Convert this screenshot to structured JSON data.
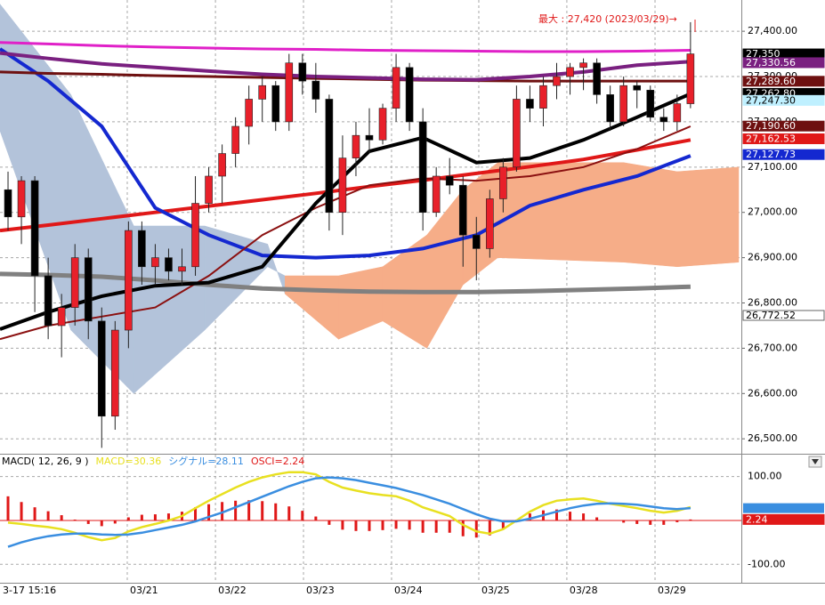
{
  "chart_data": [
    {
      "type": "candlestick",
      "annotation": "最大 : 27,420 (2023/03/29)→",
      "up_color": "#e8202a",
      "down_color": "#000000",
      "ylim": [
        26467,
        27469
      ],
      "yticks": [
        {
          "value": 26500,
          "label": "26,500.00"
        },
        {
          "value": 26600,
          "label": "26,600.00"
        },
        {
          "value": 26700,
          "label": "26,700.00"
        },
        {
          "value": 26800,
          "label": "26,800.00"
        },
        {
          "value": 26900,
          "label": "26,900.00"
        },
        {
          "value": 27000,
          "label": "27,000.00"
        },
        {
          "value": 27100,
          "label": "27,100.00"
        },
        {
          "value": 27200,
          "label": "27,200.00"
        },
        {
          "value": 27300,
          "label": "27,300.00"
        },
        {
          "value": 27400,
          "label": "27,400.00"
        }
      ],
      "grid": true,
      "open": [
        27050,
        26990,
        27070,
        26860,
        26750,
        26790,
        26900,
        26760,
        26550,
        26740,
        26960,
        26880,
        26900,
        26870,
        26880,
        27020,
        27080,
        27130,
        27190,
        27250,
        27280,
        27200,
        27330,
        27290,
        27250,
        27000,
        27120,
        27170,
        27160,
        27230,
        27320,
        27200,
        27000,
        27080,
        27060,
        26950,
        26920,
        27030,
        27100,
        27250,
        27230,
        27280,
        27300,
        27320,
        27330,
        27260,
        27200,
        27280,
        27270,
        27210,
        27200,
        27240
      ],
      "high": [
        27090,
        27080,
        27080,
        26900,
        26820,
        26930,
        26920,
        26790,
        26760,
        26980,
        26980,
        26930,
        26920,
        26920,
        27080,
        27100,
        27150,
        27210,
        27280,
        27300,
        27290,
        27350,
        27350,
        27330,
        27260,
        27170,
        27200,
        27230,
        27240,
        27350,
        27330,
        27230,
        27100,
        27120,
        27080,
        26990,
        27050,
        27120,
        27280,
        27280,
        27300,
        27330,
        27330,
        27340,
        27340,
        27280,
        27300,
        27290,
        27280,
        27230,
        27260,
        27420
      ],
      "low": [
        26960,
        26930,
        26780,
        26720,
        26680,
        26750,
        26720,
        26480,
        26520,
        26700,
        26840,
        26840,
        26850,
        26840,
        26860,
        27000,
        27020,
        27100,
        27150,
        27200,
        27180,
        27180,
        27260,
        27220,
        26960,
        26950,
        27080,
        27130,
        27150,
        27200,
        27180,
        26960,
        26990,
        27040,
        26880,
        26850,
        26900,
        27000,
        27090,
        27200,
        27190,
        27250,
        27260,
        27270,
        27240,
        27180,
        27190,
        27230,
        27200,
        27180,
        27180,
        27230
      ],
      "close": [
        26990,
        27070,
        26860,
        26750,
        26790,
        26900,
        26760,
        26550,
        26740,
        26960,
        26880,
        26900,
        26870,
        26880,
        27020,
        27080,
        27130,
        27190,
        27250,
        27280,
        27200,
        27330,
        27290,
        27250,
        27000,
        27120,
        27170,
        27160,
        27230,
        27320,
        27200,
        27000,
        27080,
        27060,
        26950,
        26920,
        27030,
        27100,
        27250,
        27230,
        27280,
        27300,
        27320,
        27330,
        27260,
        27200,
        27280,
        27270,
        27210,
        27200,
        27240,
        27350
      ],
      "cloud": {
        "colors": [
          "#b3c3da",
          "#f6ad88"
        ],
        "x": [
          -0.6,
          4.7,
          9.4,
          14.7,
          19.4,
          20.7,
          24.7,
          28.0,
          31.3,
          34.0,
          36.6,
          46.0,
          50.0,
          54.6
        ],
        "span_a": [
          27460,
          27260,
          26970,
          26970,
          26930,
          26820,
          26720,
          26760,
          26700,
          26840,
          26900,
          26890,
          26880,
          26890
        ],
        "span_b": [
          27180,
          26740,
          26600,
          26740,
          26880,
          26860,
          26860,
          26880,
          26950,
          27050,
          27110,
          27110,
          27090,
          27100
        ]
      },
      "lines": {
        "x": [
          -0.6,
          3,
          7,
          11,
          15,
          19,
          23,
          27,
          31,
          35,
          39,
          43,
          47,
          51
        ],
        "series": [
          {
            "color": "#808080",
            "width": 5,
            "values": [
              26864,
              26862,
              26858,
              26850,
              26840,
              26832,
              26828,
              26825,
              26824,
              26824,
              26826,
              26829,
              26832,
              26836
            ]
          },
          {
            "color": "#e01818",
            "width": 4,
            "values": [
              26960,
              26972,
              26986,
              27000,
              27014,
              27028,
              27042,
              27057,
              27071,
              27086,
              27101,
              27117,
              27138,
              27160
            ]
          },
          {
            "color": "#1428d0",
            "width": 4,
            "values": [
              27361,
              27290,
              27190,
              27010,
              26950,
              26905,
              26900,
              26905,
              26920,
              26950,
              27015,
              27050,
              27080,
              27125
            ]
          },
          {
            "color": "#8b1010",
            "width": 2,
            "values": [
              26720,
              26750,
              26770,
              26790,
              26860,
              26950,
              27010,
              27060,
              27075,
              27070,
              27080,
              27100,
              27140,
              27190
            ]
          },
          {
            "color": "#6e1010",
            "width": 3,
            "values": [
              27310,
              27307,
              27305,
              27302,
              27300,
              27298,
              27296,
              27294,
              27292,
              27291,
              27290,
              27290,
              27290,
              27290
            ]
          },
          {
            "color": "#7a2080",
            "width": 4,
            "values": [
              27352,
              27340,
              27328,
              27320,
              27312,
              27305,
              27300,
              27297,
              27294,
              27293,
              27300,
              27310,
              27325,
              27333
            ]
          },
          {
            "color": "#e020c8",
            "width": 3,
            "values": [
              27375,
              27372,
              27368,
              27365,
              27363,
              27361,
              27360,
              27358,
              27357,
              27356,
              27355,
              27355,
              27356,
              27358
            ]
          },
          {
            "color": "#000000",
            "width": 4,
            "values": [
              26742,
              26780,
              26815,
              26838,
              26845,
              26880,
              27020,
              27135,
              27165,
              27110,
              27120,
              27160,
              27210,
              27262
            ]
          }
        ]
      },
      "value_boxes": [
        {
          "value": 27350,
          "label": "27,350",
          "color": "#000000",
          "text_color": "#ffffff"
        },
        {
          "value": 27330.56,
          "label": "27,330.56",
          "color": "#7a2080",
          "text_color": "#ffffff"
        },
        {
          "value": 27289.6,
          "label": "27,289.60",
          "color": "#6e1010",
          "text_color": "#ffffff"
        },
        {
          "value": 27262.8,
          "label": "27,262.80",
          "color": "#000000",
          "text_color": "#ffffff"
        },
        {
          "value": 27247.3,
          "label": "27,247.30",
          "color": "#bff0ff",
          "text_color": "#000000"
        },
        {
          "value": 27190.6,
          "label": "27,190.60",
          "color": "#6e1010",
          "text_color": "#ffffff"
        },
        {
          "value": 27162.53,
          "label": "27,162.53",
          "color": "#e01818",
          "text_color": "#ffffff"
        },
        {
          "value": 27127.73,
          "label": "27,127.73",
          "color": "#1428d0",
          "text_color": "#ffffff"
        },
        {
          "value": 26772.52,
          "label": "26,772.52",
          "color": "#ffffff",
          "text_color": "#000000"
        }
      ]
    },
    {
      "type": "macd",
      "title": "MACD( 12, 26, 9 )",
      "xlim": [
        -0.6,
        54.8
      ],
      "xticks": [
        {
          "value": -0.6,
          "label": "3-17 15:16"
        },
        {
          "value": 8.91,
          "label": "03/21"
        },
        {
          "value": 15.5,
          "label": "03/22"
        },
        {
          "value": 22.08,
          "label": "03/23"
        },
        {
          "value": 28.66,
          "label": "03/24"
        },
        {
          "value": 35.18,
          "label": "03/25"
        },
        {
          "value": 41.76,
          "label": "03/28"
        },
        {
          "value": 48.35,
          "label": "03/29"
        }
      ],
      "ylim": [
        -142,
        150
      ],
      "yticks": [
        {
          "value": -100,
          "label": "-100.00"
        },
        {
          "value": 100,
          "label": "100.00"
        }
      ],
      "series": [
        {
          "name": "MACD=30.36",
          "color": "#e8e020",
          "values": [
            -5,
            -8,
            -12,
            -15,
            -20,
            -28,
            -38,
            -45,
            -40,
            -25,
            -15,
            -8,
            0,
            10,
            28,
            45,
            60,
            75,
            88,
            98,
            105,
            110,
            110,
            105,
            88,
            75,
            68,
            62,
            58,
            55,
            45,
            30,
            20,
            10,
            -10,
            -25,
            -30,
            -20,
            0,
            20,
            35,
            45,
            48,
            50,
            45,
            38,
            33,
            28,
            22,
            18,
            22,
            30.36
          ]
        },
        {
          "name": "シグナル=28.11",
          "color": "#3a8ee0",
          "values": [
            -60,
            -50,
            -42,
            -36,
            -32,
            -30,
            -30,
            -32,
            -33,
            -32,
            -28,
            -22,
            -16,
            -10,
            -2,
            8,
            18,
            30,
            42,
            54,
            66,
            78,
            88,
            96,
            98,
            96,
            92,
            86,
            80,
            74,
            66,
            58,
            48,
            38,
            26,
            14,
            4,
            -2,
            -2,
            4,
            12,
            20,
            28,
            34,
            38,
            39,
            38,
            36,
            32,
            28,
            26,
            28.11
          ]
        }
      ],
      "bars": {
        "name": "OSCI=2.24",
        "color": "#e01818",
        "values": [
          55,
          42,
          30,
          21,
          12,
          2,
          -8,
          -13,
          -7,
          7,
          13,
          14,
          16,
          20,
          30,
          37,
          42,
          45,
          46,
          44,
          39,
          32,
          22,
          9,
          -10,
          -21,
          -24,
          -24,
          -22,
          -19,
          -21,
          -28,
          -28,
          -28,
          -36,
          -39,
          -34,
          -18,
          2,
          16,
          23,
          25,
          20,
          16,
          7,
          -1,
          -5,
          -8,
          -10,
          -10,
          -4,
          2.24
        ]
      },
      "value_boxes": [
        {
          "value": 2.24,
          "label": "2.24",
          "color": "#e01818",
          "text_color": "#ffffff"
        }
      ]
    }
  ]
}
